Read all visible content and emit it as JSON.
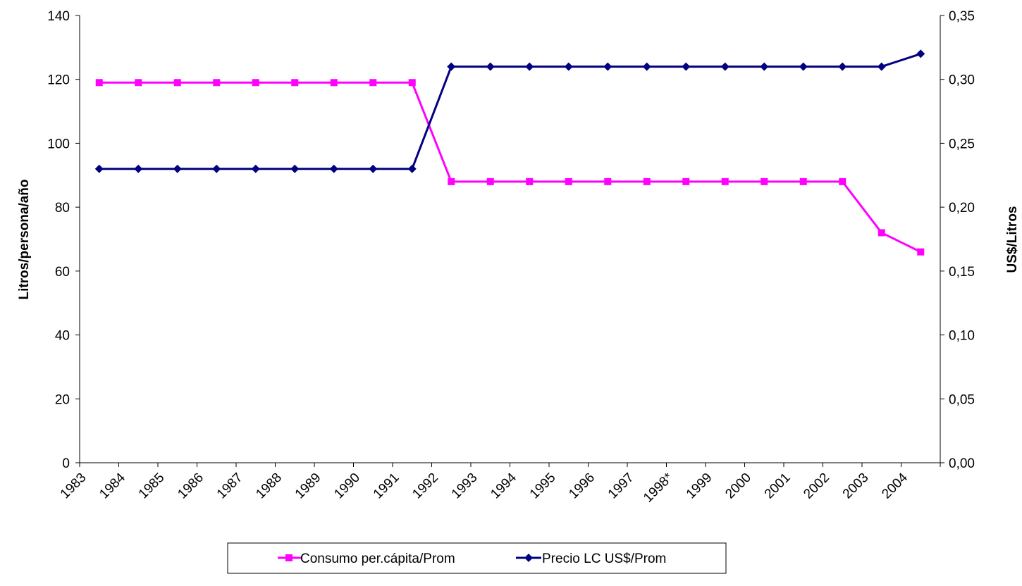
{
  "chart_data": {
    "type": "line",
    "categories": [
      "1983",
      "1984",
      "1985",
      "1986",
      "1987",
      "1988",
      "1989",
      "1990",
      "1991",
      "1992",
      "1993",
      "1994",
      "1995",
      "1996",
      "1997",
      "1998*",
      "1999",
      "2000",
      "2001",
      "2002",
      "2003",
      "2004"
    ],
    "series": [
      {
        "name": "Consumo per.cápita/Prom",
        "axis": "left",
        "color": "#FF00FF",
        "marker": "square",
        "values": [
          119,
          119,
          119,
          119,
          119,
          119,
          119,
          119,
          119,
          88,
          88,
          88,
          88,
          88,
          88,
          88,
          88,
          88,
          88,
          88,
          72,
          66
        ]
      },
      {
        "name": "Precio LC US$/Prom",
        "axis": "right",
        "color": "#000080",
        "marker": "diamond",
        "values": [
          0.23,
          0.23,
          0.23,
          0.23,
          0.23,
          0.23,
          0.23,
          0.23,
          0.23,
          0.31,
          0.31,
          0.31,
          0.31,
          0.31,
          0.31,
          0.31,
          0.31,
          0.31,
          0.31,
          0.31,
          0.31,
          0.32
        ]
      }
    ],
    "ylabel": "Litros/persona/año",
    "y2label": "US$/Litros",
    "ylim": [
      0,
      140
    ],
    "y2lim": [
      0,
      0.35
    ],
    "yticks": [
      "0",
      "20",
      "40",
      "60",
      "80",
      "100",
      "120",
      "140"
    ],
    "y2ticks": [
      "0,00",
      "0,05",
      "0,10",
      "0,15",
      "0,20",
      "0,25",
      "0,30",
      "0,35"
    ],
    "grid": false,
    "legend_position": "bottom"
  }
}
